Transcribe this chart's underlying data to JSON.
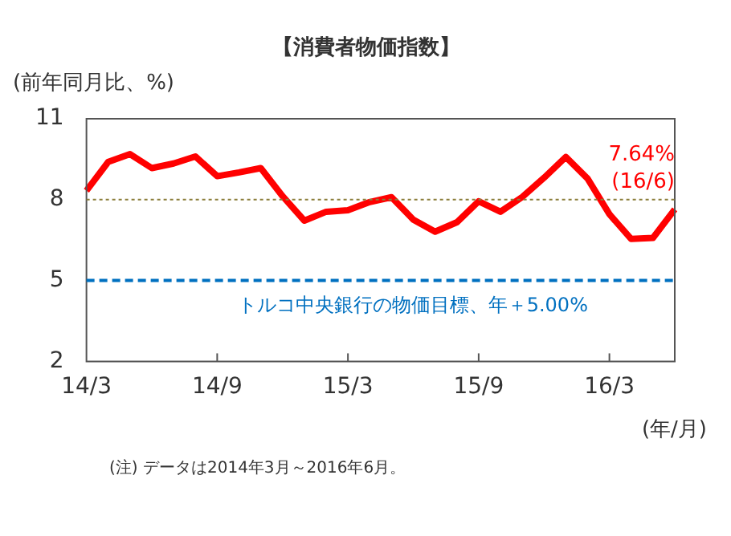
{
  "chart_data": {
    "type": "line",
    "title": "【消費者物価指数】",
    "ylabel": "(前年同月比、%)",
    "xlabel": "(年/月)",
    "categories": [
      "14/3",
      null,
      null,
      null,
      null,
      null,
      "14/9",
      null,
      null,
      null,
      null,
      null,
      "15/3",
      null,
      null,
      null,
      null,
      null,
      "15/9",
      null,
      null,
      null,
      null,
      null,
      "16/3",
      null,
      null,
      null
    ],
    "series": [
      {
        "color": "#ff0000",
        "values": [
          8.33,
          9.4,
          9.69,
          9.17,
          9.34,
          9.6,
          8.87,
          9.01,
          9.17,
          8.13,
          7.22,
          7.55,
          7.61,
          7.91,
          8.09,
          7.26,
          6.81,
          7.16,
          7.94,
          7.55,
          8.1,
          8.81,
          9.58,
          8.78,
          7.46,
          6.54,
          6.58,
          7.64
        ]
      }
    ],
    "ylim": [
      2,
      11
    ],
    "yticks": [
      2,
      5,
      8,
      11
    ],
    "grid": false,
    "legend": false,
    "marker": "none",
    "line_style": "solid",
    "ref_lines": [
      {
        "axis": "y",
        "value": 8,
        "color": "#8b7d3a",
        "line_style": "dotted"
      },
      {
        "axis": "y",
        "value": 5,
        "color": "#0070c0",
        "line_style": "dashed",
        "label": "トルコ中央銀行の物価目標、年＋5.00%"
      }
    ],
    "annotations": [
      "7.64%\n(16/6)",
      "(注) データは2014年3月～2016年6月。"
    ]
  }
}
